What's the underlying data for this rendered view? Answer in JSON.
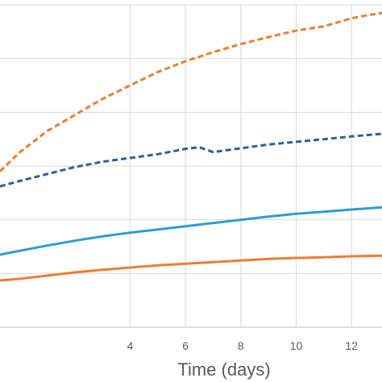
{
  "chart_data": {
    "type": "line",
    "xlabel": "Time (days)",
    "ylabel": "",
    "title": "",
    "xlim": [
      -0.7,
      13.1
    ],
    "ylim": [
      0,
      6
    ],
    "x_ticks": [
      4,
      6,
      8,
      10,
      12
    ],
    "x_tick_labels": [
      "4",
      "6",
      "8",
      "10",
      "12"
    ],
    "y_gridlines": [
      1,
      2,
      3,
      4,
      5,
      6
    ],
    "grid": true,
    "legend": "none",
    "series": [
      {
        "color": "#ED7D31",
        "style": "dashed",
        "x": [
          -0.7,
          0,
          1,
          2,
          3,
          4,
          5,
          6,
          7,
          8,
          9,
          10,
          11,
          12,
          12.5,
          13.1
        ],
        "y": [
          2.9,
          3.25,
          3.65,
          3.95,
          4.25,
          4.5,
          4.75,
          4.95,
          5.12,
          5.27,
          5.4,
          5.52,
          5.6,
          5.75,
          5.8,
          5.85
        ]
      },
      {
        "color": "#2E5F9A",
        "style": "dashed",
        "x": [
          -0.7,
          0,
          1,
          2,
          3,
          4,
          5,
          6,
          6.5,
          7,
          8,
          9,
          10,
          11,
          12,
          13.1
        ],
        "y": [
          2.62,
          2.72,
          2.85,
          2.98,
          3.08,
          3.15,
          3.22,
          3.32,
          3.35,
          3.26,
          3.33,
          3.4,
          3.45,
          3.5,
          3.55,
          3.6
        ]
      },
      {
        "color": "#2E9CD3",
        "style": "solid",
        "x": [
          -0.7,
          0,
          1,
          2,
          3,
          4,
          5,
          6,
          7,
          8,
          9,
          10,
          11,
          12,
          13.1
        ],
        "y": [
          1.35,
          1.42,
          1.52,
          1.61,
          1.69,
          1.76,
          1.82,
          1.88,
          1.94,
          2.0,
          2.06,
          2.11,
          2.15,
          2.19,
          2.23
        ]
      },
      {
        "color": "#ED7D31",
        "style": "solid",
        "x": [
          -0.7,
          0,
          1,
          2,
          3,
          4,
          5,
          6,
          7,
          8,
          9,
          10,
          11,
          12,
          13.1
        ],
        "y": [
          0.87,
          0.9,
          0.96,
          1.02,
          1.07,
          1.11,
          1.15,
          1.18,
          1.21,
          1.24,
          1.27,
          1.29,
          1.3,
          1.32,
          1.33
        ]
      }
    ]
  }
}
